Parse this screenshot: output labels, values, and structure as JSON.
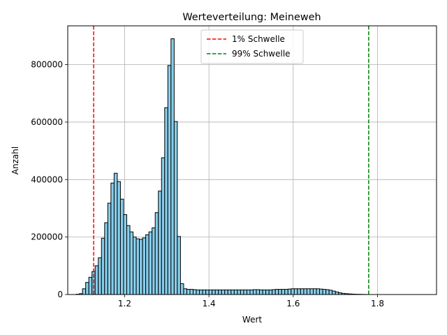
{
  "chart_data": {
    "type": "bar",
    "title": "Werteverteilung: Meineweh",
    "xlabel": "Wert",
    "ylabel": "Anzahl",
    "xlim": [
      1.065,
      1.94
    ],
    "ylim": [
      0,
      935000
    ],
    "xticks": [
      1.2,
      1.4,
      1.6,
      1.8
    ],
    "xtick_labels": [
      "1.2",
      "1.4",
      "1.6",
      "1.8"
    ],
    "yticks": [
      0,
      200000,
      400000,
      600000,
      800000
    ],
    "ytick_labels": [
      "0",
      "200000",
      "400000",
      "600000",
      "800000"
    ],
    "grid": true,
    "bar_color": "#87ceeb",
    "bar_edge_color": "#000000",
    "bin_start": 1.085,
    "bin_width": 0.0075,
    "values": [
      1000,
      3000,
      20000,
      42000,
      60000,
      80000,
      100000,
      128000,
      196000,
      250000,
      318000,
      388000,
      422000,
      393000,
      332000,
      278000,
      240000,
      218000,
      200000,
      194000,
      192000,
      197000,
      208000,
      218000,
      232000,
      285000,
      360000,
      476000,
      650000,
      797000,
      890000,
      602000,
      202000,
      38000,
      20000,
      18000,
      18000,
      17000,
      16000,
      16000,
      16000,
      16000,
      16000,
      16000,
      16000,
      16000,
      16000,
      16000,
      16000,
      16000,
      16000,
      16000,
      16000,
      16000,
      16000,
      16000,
      17000,
      17000,
      16000,
      16000,
      16000,
      16000,
      17000,
      18000,
      18000,
      18000,
      18000,
      19000,
      20000,
      20000,
      20000,
      20000,
      20000,
      20000,
      20000,
      20000,
      20000,
      19000,
      18000,
      17000,
      15000,
      12000,
      9000,
      6000,
      4000,
      3000,
      2000,
      1500,
      1000,
      800,
      500,
      300
    ],
    "legend": {
      "position": "top-center",
      "entries": [
        {
          "label": "1% Schwelle",
          "color": "#ff0000",
          "style": "dashed"
        },
        {
          "label": "99% Schwelle",
          "color": "#008000",
          "style": "dashed"
        }
      ]
    },
    "thresholds": [
      {
        "label": "1% Schwelle",
        "x": 1.1265,
        "color": "#ff0000"
      },
      {
        "label": "99% Schwelle",
        "x": 1.779,
        "color": "#008000"
      }
    ]
  }
}
